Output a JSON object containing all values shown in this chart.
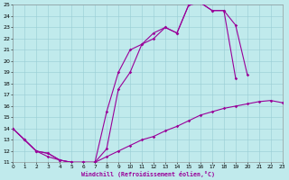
{
  "xlabel": "Windchill (Refroidissement éolien,°C)",
  "xlim": [
    0,
    23
  ],
  "ylim": [
    11,
    25
  ],
  "xticks": [
    0,
    1,
    2,
    3,
    4,
    5,
    6,
    7,
    8,
    9,
    10,
    11,
    12,
    13,
    14,
    15,
    16,
    17,
    18,
    19,
    20,
    21,
    22,
    23
  ],
  "yticks": [
    11,
    12,
    13,
    14,
    15,
    16,
    17,
    18,
    19,
    20,
    21,
    22,
    23,
    24,
    25
  ],
  "bg_color": "#c0eaec",
  "grid_color": "#98cdd4",
  "line_color": "#990099",
  "line_width": 0.8,
  "marker": "D",
  "marker_size": 1.8,
  "line1_x": [
    0,
    1,
    2,
    3,
    4,
    5,
    6,
    7,
    8,
    9,
    10,
    11,
    12,
    13,
    14,
    15,
    16,
    17,
    18,
    19
  ],
  "line1_y": [
    14.0,
    13.0,
    12.0,
    11.8,
    11.2,
    11.0,
    11.0,
    11.0,
    15.5,
    19.0,
    21.0,
    21.5,
    22.5,
    23.0,
    22.5,
    25.0,
    25.2,
    24.5,
    24.5,
    18.5
  ],
  "line2_x": [
    0,
    1,
    2,
    3,
    4,
    5,
    6,
    7,
    8,
    9,
    10,
    11,
    12,
    13,
    14,
    15,
    16,
    17,
    18,
    19,
    20
  ],
  "line2_y": [
    14.0,
    13.0,
    12.0,
    11.8,
    11.2,
    11.0,
    11.0,
    11.0,
    12.2,
    17.5,
    19.0,
    21.5,
    22.0,
    23.0,
    22.5,
    25.0,
    25.2,
    24.5,
    24.5,
    23.2,
    18.8
  ],
  "line3_x": [
    0,
    1,
    2,
    3,
    4,
    5,
    6,
    7,
    8,
    9,
    10,
    11,
    12,
    13,
    14,
    15,
    16,
    17,
    18,
    19,
    20,
    21,
    22,
    23
  ],
  "line3_y": [
    14.0,
    13.0,
    12.0,
    11.5,
    11.2,
    11.0,
    11.0,
    11.0,
    11.5,
    12.0,
    12.5,
    13.0,
    13.3,
    13.8,
    14.2,
    14.7,
    15.2,
    15.5,
    15.8,
    16.0,
    16.2,
    16.4,
    16.5,
    16.3
  ]
}
